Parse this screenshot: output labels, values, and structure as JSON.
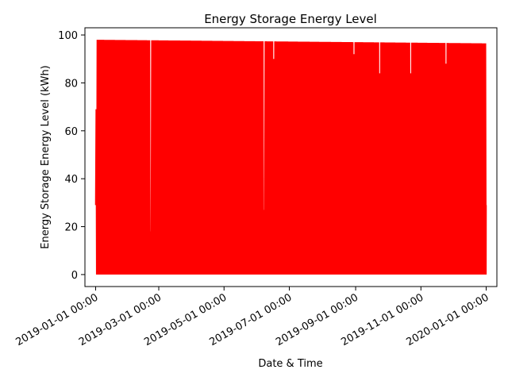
{
  "chart_data": {
    "type": "line",
    "title": "Energy Storage Energy Level",
    "xlabel": "Date & Time",
    "ylabel": "Energy Storage Energy Level (kWh)",
    "x_range": [
      "2018-12-22",
      "2020-01-11"
    ],
    "ylim": [
      -5,
      103
    ],
    "x_ticks": [
      {
        "date": "2019-01-01",
        "label": "2019-01-01 00:00"
      },
      {
        "date": "2019-03-01",
        "label": "2019-03-01 00:00"
      },
      {
        "date": "2019-05-01",
        "label": "2019-05-01 00:00"
      },
      {
        "date": "2019-07-01",
        "label": "2019-07-01 00:00"
      },
      {
        "date": "2019-09-01",
        "label": "2019-09-01 00:00"
      },
      {
        "date": "2019-11-01",
        "label": "2019-11-01 00:00"
      },
      {
        "date": "2020-01-01",
        "label": "2020-01-01 00:00"
      }
    ],
    "y_ticks": [
      0,
      20,
      40,
      60,
      80,
      100
    ],
    "grid": false,
    "legend": "none",
    "series": [
      {
        "color": "#ff0000",
        "x_start": "2019-01-01",
        "x_end": "2020-01-01",
        "daily_max_start": 98.0,
        "daily_max_end": 96.5,
        "daily_min": 0,
        "initial_value": 29,
        "final_value": 29,
        "notes_visible_peaks": [
          {
            "date": "2019-01-01",
            "value": 69
          },
          {
            "date": "2019-02-21",
            "value": 18
          },
          {
            "date": "2019-06-07",
            "value": 27
          },
          {
            "date": "2019-06-16",
            "value": 90
          },
          {
            "date": "2019-08-30",
            "value": 92
          },
          {
            "date": "2019-09-23",
            "value": 84
          },
          {
            "date": "2019-10-22",
            "value": 84
          },
          {
            "date": "2019-11-24",
            "value": 88
          }
        ]
      }
    ]
  }
}
